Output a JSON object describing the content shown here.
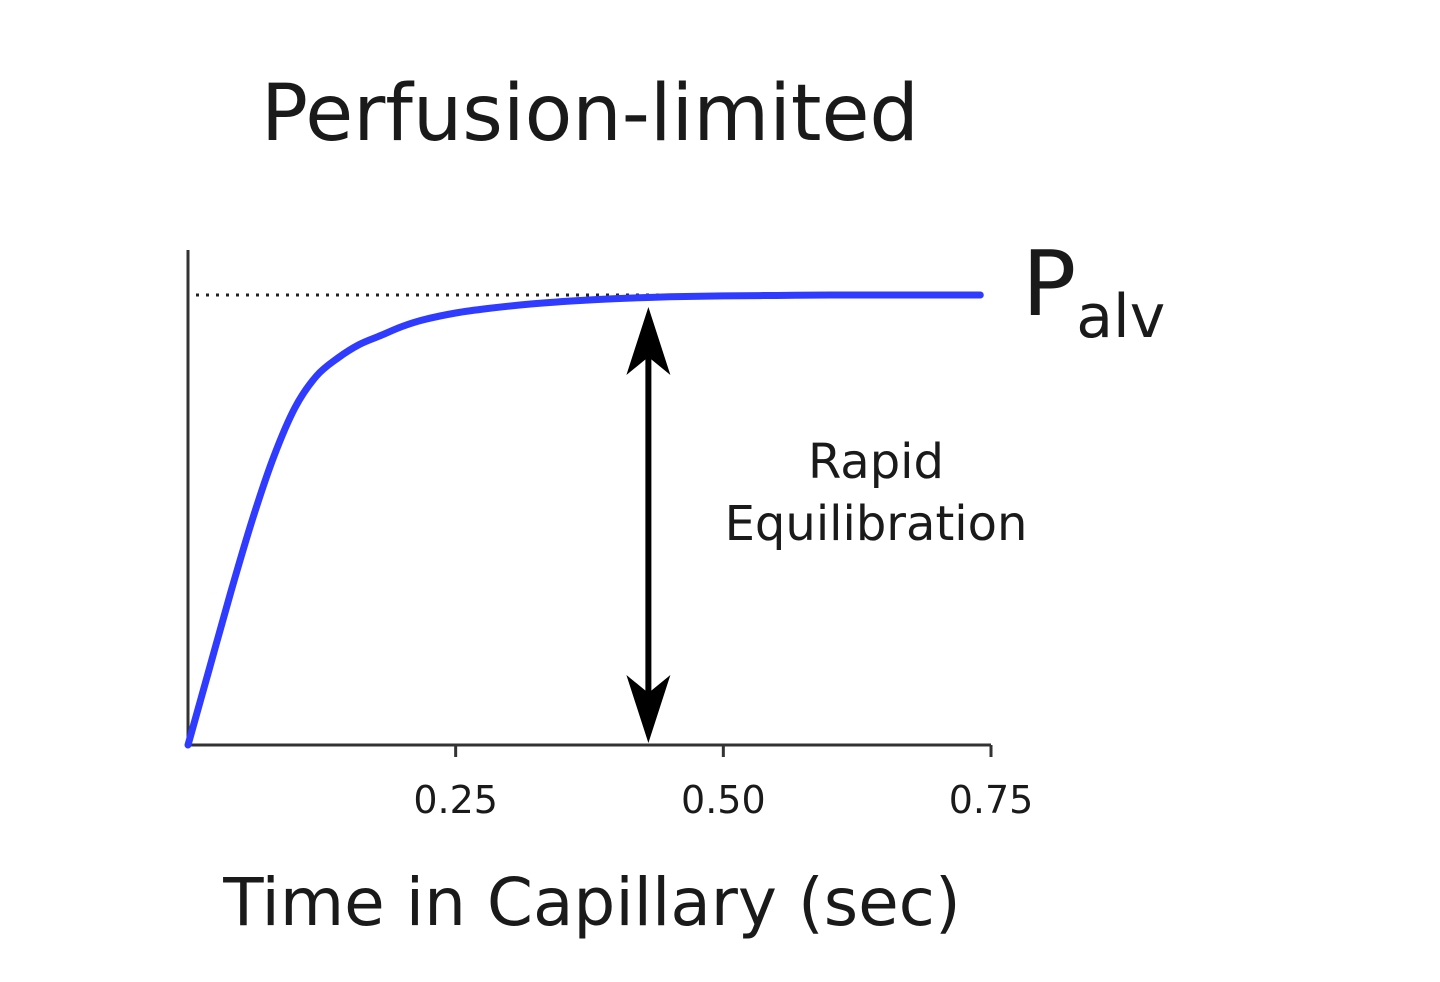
{
  "chart_data": {
    "type": "line",
    "title": "Perfusion-limited",
    "xlabel": "Time in Capillary (sec)",
    "ylabel": "",
    "xlim": [
      0,
      0.75
    ],
    "ylim": [
      0,
      1
    ],
    "x_ticks": [
      0.25,
      0.5,
      0.75
    ],
    "x_tick_labels": [
      "0.25",
      "0.50",
      "0.75"
    ],
    "grid": false,
    "series": [
      {
        "color": "#2f3cff",
        "x": [
          0,
          0.02,
          0.04,
          0.06,
          0.08,
          0.1,
          0.12,
          0.14,
          0.16,
          0.18,
          0.2,
          0.22,
          0.25,
          0.28,
          0.32,
          0.36,
          0.4,
          0.45,
          0.5,
          0.55,
          0.6,
          0.65,
          0.7,
          0.74
        ],
        "y": [
          0,
          0.17,
          0.34,
          0.5,
          0.64,
          0.75,
          0.82,
          0.86,
          0.89,
          0.91,
          0.93,
          0.945,
          0.96,
          0.97,
          0.98,
          0.987,
          0.992,
          0.996,
          0.998,
          0.999,
          1.0,
          1.0,
          1.0,
          1.0
        ]
      }
    ],
    "reference_line": {
      "y": 1.0,
      "style": "dotted",
      "label_main": "P",
      "label_sub": "alv"
    },
    "annotation": {
      "x": 0.43,
      "y_from": 0,
      "y_to": 1.0,
      "style": "double-arrow",
      "text_lines": [
        "Rapid",
        "Equilibration"
      ]
    }
  }
}
